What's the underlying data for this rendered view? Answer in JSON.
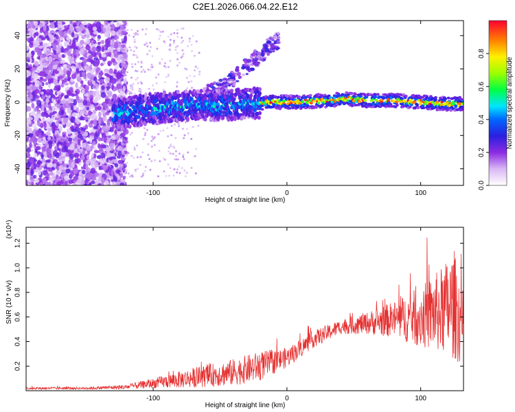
{
  "title": "C2E1.2026.066.04.22.E12",
  "chart_data": [
    {
      "type": "heatmap",
      "xlabel": "Height of straight line (km)",
      "ylabel": "Frequency (Hz)",
      "xlim": [
        -195,
        132
      ],
      "ylim": [
        -50,
        49
      ],
      "xticks": [
        {
          "value": -100,
          "label": "-100"
        },
        {
          "value": 0,
          "label": "0"
        },
        {
          "value": 100,
          "label": "100"
        }
      ],
      "yticks": [
        {
          "value": 40,
          "label": "40"
        },
        {
          "value": 20,
          "label": "20"
        },
        {
          "value": 0,
          "label": "0"
        },
        {
          "value": -20,
          "label": "-20"
        },
        {
          "value": -40,
          "label": "-40"
        }
      ],
      "colorbar": {
        "label": "Normalized spectral amplitude",
        "range": [
          0,
          1
        ],
        "ticks": [
          {
            "value": 0.0,
            "label": "0.0"
          },
          {
            "value": 0.2,
            "label": "0.2"
          },
          {
            "value": 0.4,
            "label": "0.4"
          },
          {
            "value": 0.6,
            "label": "0.6"
          },
          {
            "value": 0.8,
            "label": "0.8"
          }
        ],
        "stops": [
          {
            "value": 0.0,
            "color": "#ffffff"
          },
          {
            "value": 0.1,
            "color": "#d9b8f5"
          },
          {
            "value": 0.2,
            "color": "#8b2be2"
          },
          {
            "value": 0.3,
            "color": "#2b1fe0"
          },
          {
            "value": 0.4,
            "color": "#0066ff"
          },
          {
            "value": 0.48,
            "color": "#00e5ff"
          },
          {
            "value": 0.58,
            "color": "#00ff44"
          },
          {
            "value": 0.68,
            "color": "#9cff00"
          },
          {
            "value": 0.78,
            "color": "#fff000"
          },
          {
            "value": 0.88,
            "color": "#ff8000"
          },
          {
            "value": 1.0,
            "color": "#ff0030"
          }
        ]
      },
      "ridge": [
        {
          "x": -130,
          "y": -7
        },
        {
          "x": -110,
          "y": -5
        },
        {
          "x": -90,
          "y": -3
        },
        {
          "x": -70,
          "y": -2
        },
        {
          "x": -50,
          "y": -2
        },
        {
          "x": -30,
          "y": -1
        },
        {
          "x": -10,
          "y": 0
        },
        {
          "x": 10,
          "y": 0
        },
        {
          "x": 30,
          "y": 1
        },
        {
          "x": 45,
          "y": 2
        },
        {
          "x": 60,
          "y": 1
        },
        {
          "x": 80,
          "y": 1
        },
        {
          "x": 100,
          "y": 0
        },
        {
          "x": 120,
          "y": -1
        },
        {
          "x": 132,
          "y": -1
        }
      ],
      "branch": [
        {
          "x": -60,
          "y": 5
        },
        {
          "x": -45,
          "y": 10
        },
        {
          "x": -35,
          "y": 18
        },
        {
          "x": -25,
          "y": 25
        },
        {
          "x": -15,
          "y": 32
        },
        {
          "x": -8,
          "y": 37
        }
      ]
    },
    {
      "type": "line",
      "xlabel": "Height of straight line (km)",
      "ylabel": "SNR (10 * v/v)",
      "yscale_label": "(x10⁴)",
      "xlim": [
        -195,
        132
      ],
      "ylim": [
        0,
        1.33
      ],
      "xticks": [
        {
          "value": -100,
          "label": "-100"
        },
        {
          "value": 0,
          "label": "0"
        },
        {
          "value": 100,
          "label": "100"
        }
      ],
      "yticks": [
        {
          "value": 0.2,
          "label": "0.2"
        },
        {
          "value": 0.4,
          "label": "0.4"
        },
        {
          "value": 0.6,
          "label": "0.6"
        },
        {
          "value": 0.8,
          "label": "0.8"
        },
        {
          "value": 1.0,
          "label": "1.0"
        },
        {
          "value": 1.2,
          "label": "1.2"
        }
      ],
      "color": "#e53030",
      "envelope": [
        {
          "x": -195,
          "base": 0.02,
          "noise": 0.01
        },
        {
          "x": -150,
          "base": 0.02,
          "noise": 0.01
        },
        {
          "x": -120,
          "base": 0.03,
          "noise": 0.02
        },
        {
          "x": -100,
          "base": 0.06,
          "noise": 0.04
        },
        {
          "x": -80,
          "base": 0.09,
          "noise": 0.07
        },
        {
          "x": -60,
          "base": 0.12,
          "noise": 0.09
        },
        {
          "x": -40,
          "base": 0.15,
          "noise": 0.11
        },
        {
          "x": -20,
          "base": 0.2,
          "noise": 0.12
        },
        {
          "x": 0,
          "base": 0.27,
          "noise": 0.08
        },
        {
          "x": 20,
          "base": 0.42,
          "noise": 0.07
        },
        {
          "x": 40,
          "base": 0.52,
          "noise": 0.06
        },
        {
          "x": 60,
          "base": 0.55,
          "noise": 0.09
        },
        {
          "x": 80,
          "base": 0.58,
          "noise": 0.15
        },
        {
          "x": 100,
          "base": 0.6,
          "noise": 0.25
        },
        {
          "x": 115,
          "base": 0.65,
          "noise": 0.35
        },
        {
          "x": 125,
          "base": 0.7,
          "noise": 0.45
        },
        {
          "x": 132,
          "base": 0.5,
          "noise": 0.3
        }
      ]
    }
  ]
}
